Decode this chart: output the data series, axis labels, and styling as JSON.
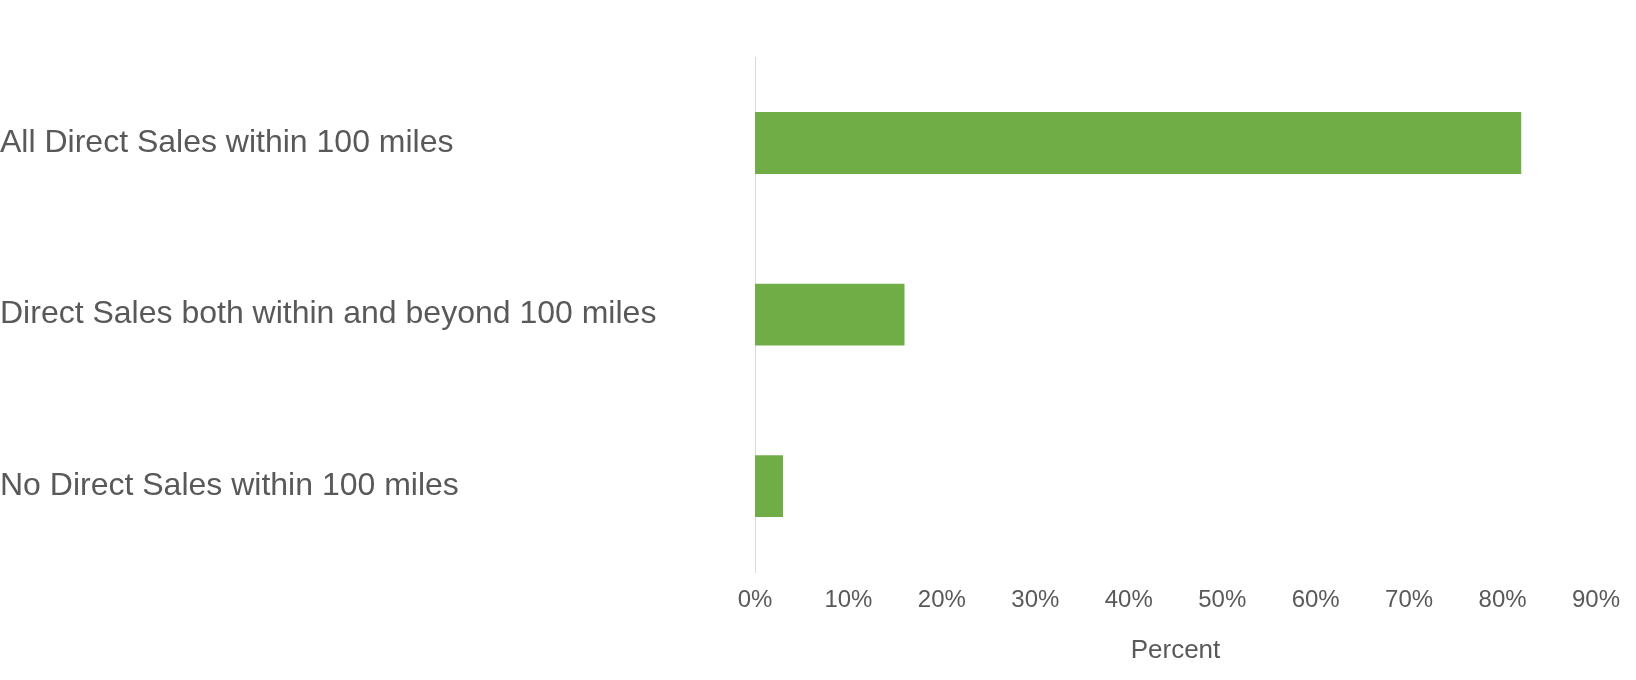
{
  "chart_data": {
    "type": "bar",
    "orientation": "horizontal",
    "xlabel": "Percent",
    "categories": [
      "All Direct Sales within 100 miles",
      "Direct Sales both within and beyond 100 miles",
      "No Direct Sales within 100 miles"
    ],
    "values": [
      82,
      16,
      3
    ],
    "color": "#70ad47",
    "xlim": [
      0,
      90
    ],
    "xticks": [
      {
        "value": 0,
        "label": "0%"
      },
      {
        "value": 10,
        "label": "10%"
      },
      {
        "value": 20,
        "label": "20%"
      },
      {
        "value": 30,
        "label": "30%"
      },
      {
        "value": 40,
        "label": "40%"
      },
      {
        "value": 50,
        "label": "50%"
      },
      {
        "value": 60,
        "label": "60%"
      },
      {
        "value": 70,
        "label": "70%"
      },
      {
        "value": 80,
        "label": "80%"
      },
      {
        "value": 90,
        "label": "90%"
      }
    ],
    "grid": false,
    "legend": false
  }
}
